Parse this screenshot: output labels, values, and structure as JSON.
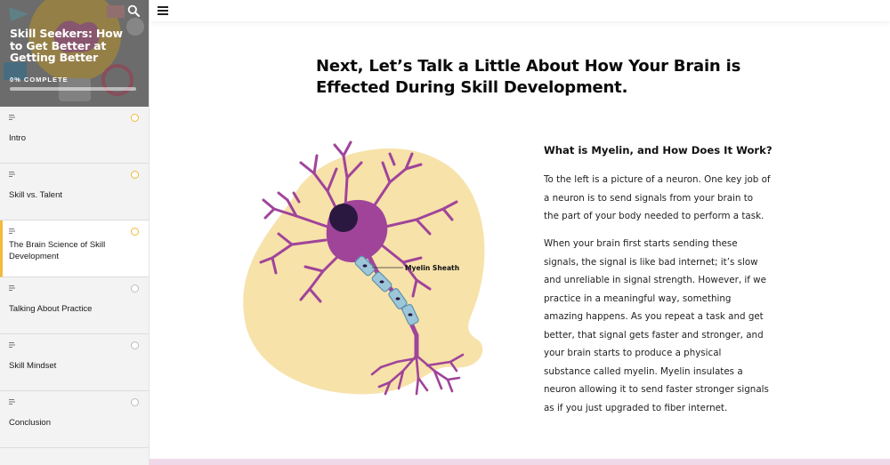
{
  "course": {
    "title": "Skill Seekers: How to Get Better at Getting Better",
    "progress_label": "0% COMPLETE",
    "progress_fraction": 0
  },
  "lessons": [
    {
      "label": "Intro",
      "status": "started"
    },
    {
      "label": "Skill vs. Talent",
      "status": "started"
    },
    {
      "label": "The Brain Science of Skill Development",
      "status": "started",
      "active": true
    },
    {
      "label": "Talking About Practice",
      "status": "not-started"
    },
    {
      "label": "Skill Mindset",
      "status": "not-started"
    },
    {
      "label": "Conclusion",
      "status": "not-started"
    }
  ],
  "content": {
    "heading": "Next, Let’s Talk a Little About How Your Brain is Effected During Skill Development.",
    "figure_label": "Myelin Sheath",
    "sub_heading": "What is Myelin, and How Does It Work?",
    "paragraph1": "To the left is a picture of a neuron. One key job of a neuron is to send signals from your brain to the part of your body needed to perform a task.",
    "paragraph2": "When your brain first starts sending these signals, the signal is like bad internet; it’s slow and unreliable in signal strength. However, if we practice in a meaningful way, something amazing happens. As you repeat a task and get better, that signal gets faster and stronger, and your brain starts to produce a physical substance called myelin. Myelin insulates a neuron allowing it to send faster stronger signals as if you just upgraded to fiber internet."
  },
  "colors": {
    "accent": "#f2b93b",
    "neuron": "#a0449a",
    "blob": "#f7e2aa",
    "myelin": "#9cc7d9"
  }
}
